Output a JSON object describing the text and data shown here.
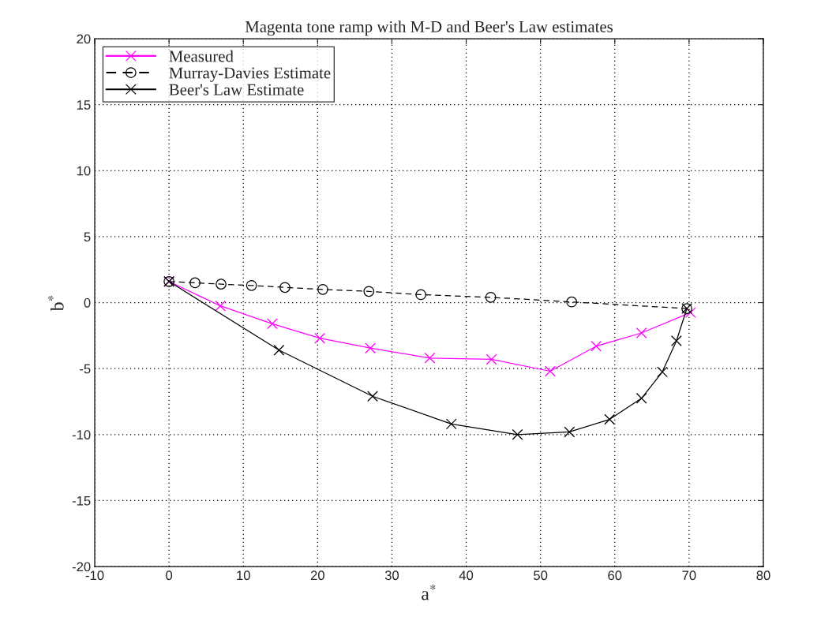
{
  "chart_data": {
    "type": "line",
    "title": "Magenta tone ramp with M-D and Beer's Law estimates",
    "xlabel": "a$^{*}$",
    "ylabel": "b$^{*}$",
    "xlim": [
      -10,
      80
    ],
    "ylim": [
      -20,
      20
    ],
    "xticks": [
      -10,
      0,
      10,
      20,
      30,
      40,
      50,
      60,
      70,
      80
    ],
    "yticks": [
      -20,
      -15,
      -10,
      -5,
      0,
      5,
      10,
      15,
      20
    ],
    "grid": true,
    "legend": "top left",
    "series": [
      {
        "name": "Measured",
        "color": "#ff00ff",
        "marker": "cross",
        "line_style": "solid",
        "x": [
          0,
          6.9,
          13.9,
          20.3,
          27.1,
          35.1,
          43.4,
          51.3,
          57.5,
          63.6,
          70.2
        ],
        "values": [
          1.6,
          -0.25,
          -1.6,
          -2.7,
          -3.45,
          -4.2,
          -4.3,
          -5.2,
          -3.3,
          -2.3,
          -0.75
        ]
      },
      {
        "name": "Murray-Davies Estimate",
        "color": "#000000",
        "marker": "circle",
        "line_style": "dashed",
        "x": [
          0,
          3.5,
          7.0,
          11.1,
          15.6,
          20.7,
          26.9,
          33.9,
          43.3,
          54.2,
          69.7
        ],
        "values": [
          1.6,
          1.5,
          1.4,
          1.3,
          1.15,
          1.0,
          0.85,
          0.6,
          0.4,
          0.05,
          -0.45
        ]
      },
      {
        "name": "Beer's Law Estimate",
        "color": "#000000",
        "marker": "cross",
        "line_style": "solid",
        "x": [
          0,
          14.8,
          27.4,
          38.0,
          46.9,
          53.9,
          59.3,
          63.6,
          66.4,
          68.3,
          69.7
        ],
        "values": [
          1.6,
          -3.6,
          -7.1,
          -9.2,
          -10.0,
          -9.8,
          -8.85,
          -7.25,
          -5.25,
          -2.9,
          -0.45
        ]
      }
    ]
  }
}
